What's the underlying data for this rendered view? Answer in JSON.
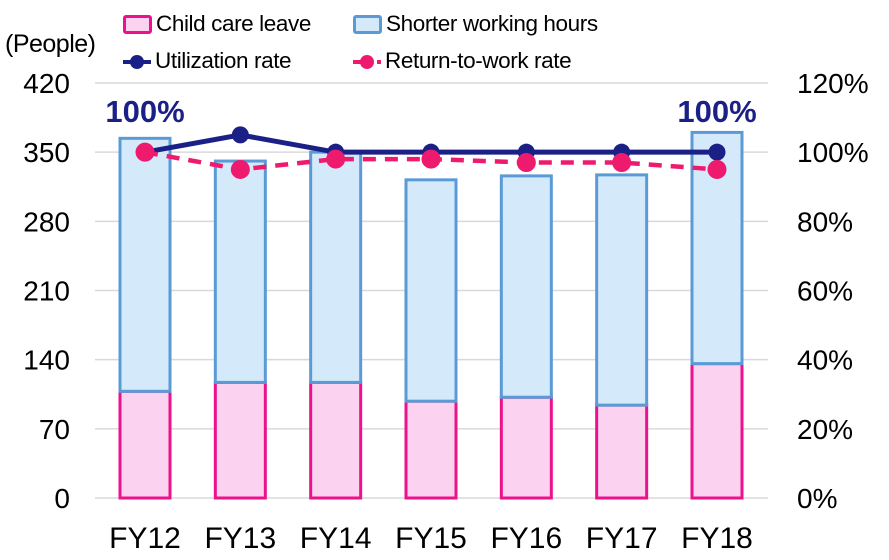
{
  "chart_data": {
    "type": "bar",
    "subtype": "stacked-bars-with-lines-combo",
    "categories": [
      "FY12",
      "FY13",
      "FY14",
      "FY15",
      "FY16",
      "FY17",
      "FY18"
    ],
    "bar_series": [
      {
        "name": "Child care leave",
        "values": [
          108,
          117,
          117,
          98,
          102,
          94,
          136
        ],
        "fill": "#fbd2f0",
        "border": "#ec128b"
      },
      {
        "name": "Shorter working hours",
        "values": [
          256,
          224,
          233,
          224,
          224,
          233,
          234
        ],
        "fill": "#d4eafb",
        "border": "#5b9bd5"
      }
    ],
    "bar_totals": [
      364,
      341,
      350,
      322,
      326,
      327,
      370
    ],
    "line_series": [
      {
        "name": "Utilization rate",
        "values_pct": [
          100,
          105,
          100,
          100,
          100,
          100,
          100
        ],
        "color": "#1b2087",
        "style": "solid"
      },
      {
        "name": "Return-to-work rate",
        "values_pct": [
          100,
          95,
          98,
          98,
          97,
          97,
          95
        ],
        "color": "#ee1a6e",
        "style": "dashed"
      }
    ],
    "left_axis": {
      "title": "(People)",
      "ticks": [
        420,
        350,
        280,
        210,
        140,
        70,
        0
      ],
      "max": 420
    },
    "right_axis": {
      "tick_labels": [
        "120%",
        "100%",
        "80%",
        "60%",
        "40%",
        "20%",
        "0%"
      ],
      "tick_values": [
        120,
        100,
        80,
        60,
        40,
        20,
        0
      ],
      "max_pct": 120
    },
    "annotations": [
      {
        "text": "100%",
        "category_index": 0,
        "color": "#1b2087"
      },
      {
        "text": "100%",
        "category_index": 6,
        "color": "#1b2087"
      }
    ],
    "grid_color": "#d9d9d9",
    "text_color": "#000000",
    "legend_position": "top",
    "grid": "horizontal-only"
  }
}
